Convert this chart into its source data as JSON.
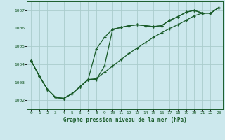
{
  "title": "Graphe pression niveau de la mer (hPa)",
  "background_color": "#cce8ed",
  "grid_color": "#aacccc",
  "line_color": "#1a5c2a",
  "marker": "+",
  "xlim": [
    0,
    23
  ],
  "ylim": [
    1001.5,
    1007.5
  ],
  "yticks": [
    1002,
    1003,
    1004,
    1005,
    1006,
    1007
  ],
  "xticks": [
    0,
    1,
    2,
    3,
    4,
    5,
    6,
    7,
    8,
    9,
    10,
    11,
    12,
    13,
    14,
    15,
    16,
    17,
    18,
    19,
    20,
    21,
    22,
    23
  ],
  "series1_y": [
    1004.2,
    1003.35,
    1002.6,
    1002.15,
    1002.1,
    1002.35,
    1002.75,
    1003.15,
    1003.15,
    1003.9,
    1005.95,
    1006.05,
    1006.15,
    1006.2,
    1006.15,
    1006.1,
    1006.15,
    1006.45,
    1006.65,
    1006.9,
    1007.0,
    1006.85,
    1006.85,
    1007.15
  ],
  "series2_y": [
    1004.2,
    1003.35,
    1002.6,
    1002.15,
    1002.1,
    1002.35,
    1002.75,
    1003.15,
    1004.85,
    1005.5,
    1005.95,
    1006.05,
    1006.15,
    1006.2,
    1006.15,
    1006.1,
    1006.15,
    1006.45,
    1006.65,
    1006.9,
    1007.0,
    1006.85,
    1006.85,
    1007.15
  ],
  "series3_y": [
    1004.2,
    1003.35,
    1002.6,
    1002.15,
    1002.1,
    1002.35,
    1002.75,
    1003.15,
    1003.2,
    1003.55,
    1003.9,
    1004.25,
    1004.6,
    1004.9,
    1005.2,
    1005.5,
    1005.75,
    1006.0,
    1006.2,
    1006.45,
    1006.7,
    1006.85,
    1006.85,
    1007.15
  ]
}
